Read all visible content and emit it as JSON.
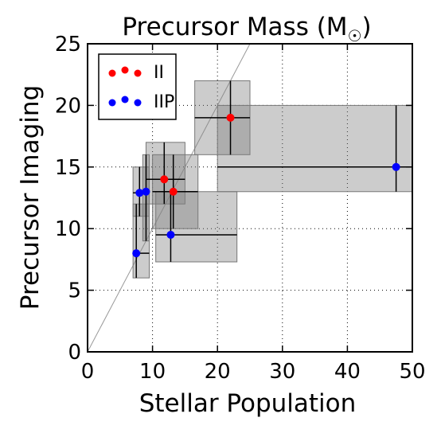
{
  "chart_data": {
    "type": "scatter",
    "title": "Precursor Mass (M",
    "title_symbol": "☉",
    "title_close": ")",
    "xlabel": "Stellar Population",
    "ylabel": "Precursor Imaging",
    "xlim": [
      0,
      50
    ],
    "ylim": [
      0,
      25
    ],
    "xticks": [
      0,
      10,
      20,
      30,
      40,
      50
    ],
    "yticks": [
      0,
      5,
      10,
      15,
      20,
      25
    ],
    "grid": true,
    "grid_style": "dotted",
    "legend_position": "top-left",
    "one_to_one_line": true,
    "series": [
      {
        "name": "II",
        "color": "#ff0000",
        "points": [
          {
            "x": 11.8,
            "y": 14.0,
            "xerr": [
              9.0,
              15.0
            ],
            "yerr": [
              12.0,
              17.0
            ]
          },
          {
            "x": 13.2,
            "y": 13.0,
            "xerr": [
              10.0,
              17.0
            ],
            "yerr": [
              10.0,
              16.0
            ]
          },
          {
            "x": 22.0,
            "y": 19.0,
            "xerr": [
              16.5,
              25.0
            ],
            "yerr": [
              16.0,
              22.0
            ]
          }
        ]
      },
      {
        "name": "IIP",
        "color": "#0000ff",
        "points": [
          {
            "x": 7.5,
            "y": 8.0,
            "xerr": [
              7.0,
              9.5
            ],
            "yerr": [
              6.0,
              12.0
            ]
          },
          {
            "x": 8.0,
            "y": 12.9,
            "xerr": [
              7.0,
              9.5
            ],
            "yerr": [
              11.0,
              15.0
            ]
          },
          {
            "x": 9.0,
            "y": 13.0,
            "xerr": [
              8.5,
              9.5
            ],
            "yerr": [
              9.0,
              16.0
            ]
          },
          {
            "x": 12.8,
            "y": 9.5,
            "xerr": [
              10.5,
              23.0
            ],
            "yerr": [
              7.3,
              13.0
            ]
          },
          {
            "x": 47.5,
            "y": 15.0,
            "xerr": [
              20.0,
              50.0
            ],
            "yerr": [
              13.0,
              20.0
            ]
          }
        ]
      }
    ]
  }
}
